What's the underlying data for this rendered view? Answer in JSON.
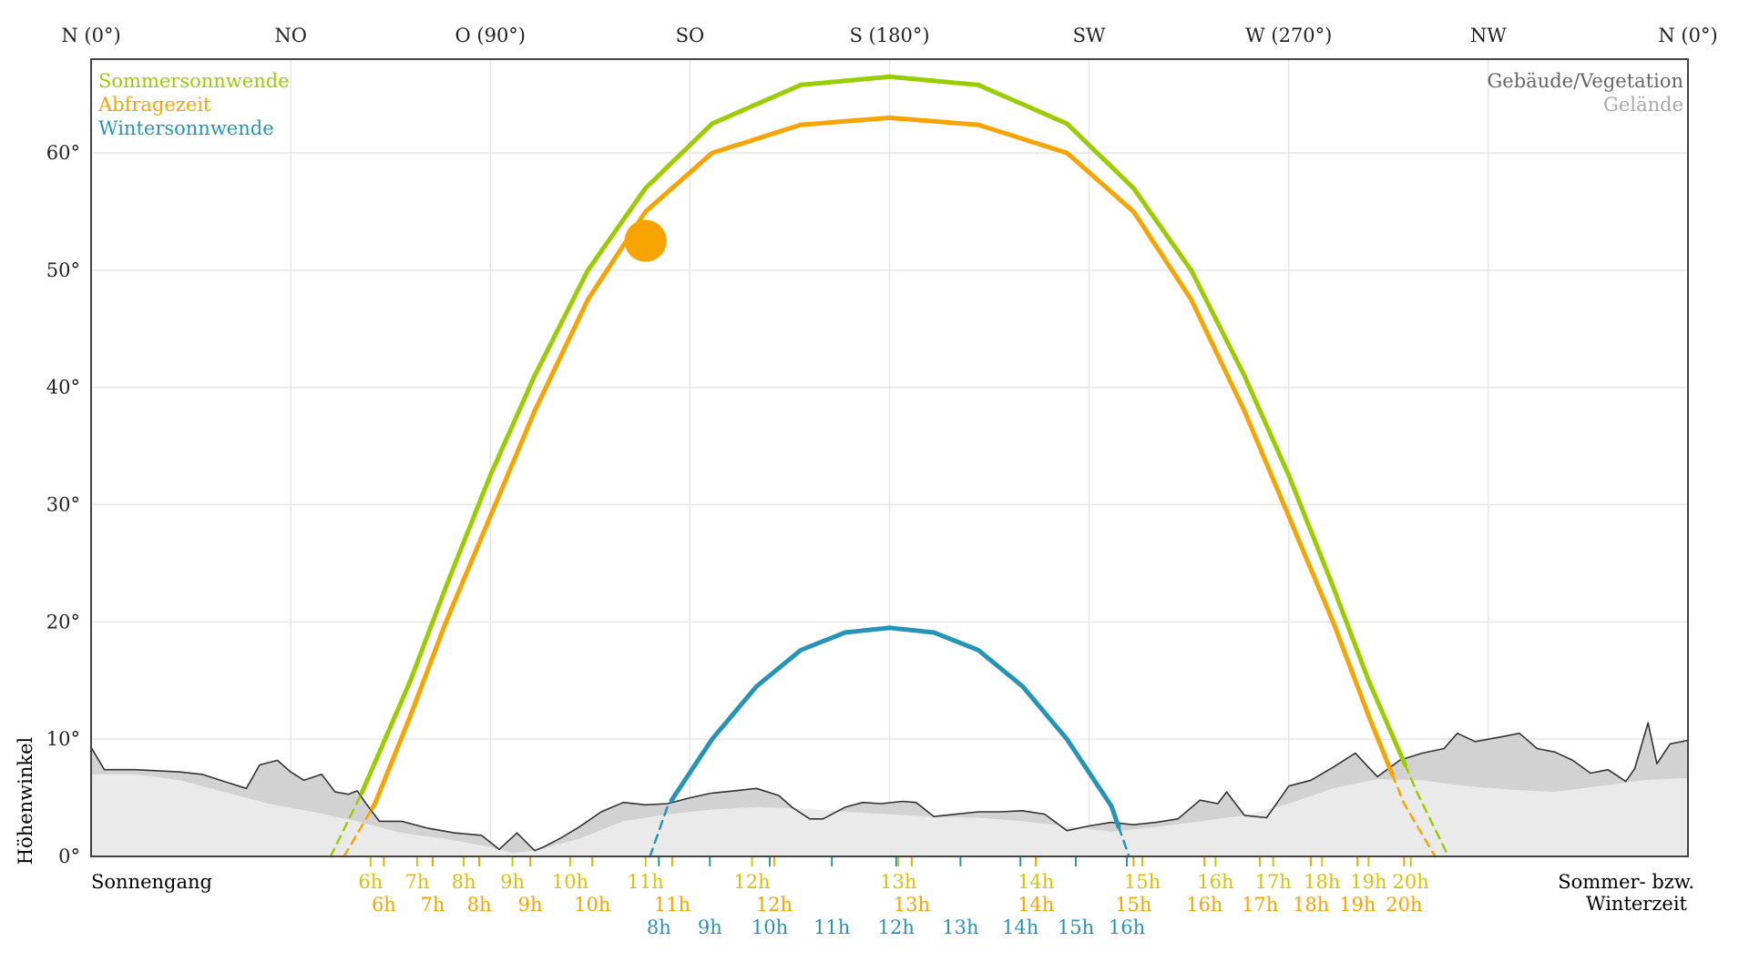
{
  "chart_data": {
    "type": "line",
    "x_axis": {
      "range": [
        0,
        360
      ],
      "direction_labels": [
        {
          "deg": 0,
          "label": "N (0°)"
        },
        {
          "deg": 45,
          "label": "NO"
        },
        {
          "deg": 90,
          "label": "O (90°)"
        },
        {
          "deg": 135,
          "label": "SO"
        },
        {
          "deg": 180,
          "label": "S (180°)"
        },
        {
          "deg": 225,
          "label": "SW"
        },
        {
          "deg": 270,
          "label": "W (270°)"
        },
        {
          "deg": 315,
          "label": "NW"
        },
        {
          "deg": 360,
          "label": "N (0°)"
        }
      ],
      "left_caption": "Sonnengang",
      "right_caption_1": "Sommer- bzw.",
      "right_caption_2": "Winterzeit"
    },
    "y_axis": {
      "label": "Höhenwinkel",
      "range": [
        0,
        68
      ],
      "ticks": [
        {
          "value": 0,
          "label": "0°"
        },
        {
          "value": 10,
          "label": "10°"
        },
        {
          "value": 20,
          "label": "20°"
        },
        {
          "value": 30,
          "label": "30°"
        },
        {
          "value": 40,
          "label": "40°"
        },
        {
          "value": 50,
          "label": "50°"
        },
        {
          "value": 60,
          "label": "60°"
        }
      ]
    },
    "grid": true,
    "legend_left": {
      "placement": "top-left",
      "entries": [
        {
          "name": "Sommersonnwende",
          "color": "#9acd00"
        },
        {
          "name": "Abfragezeit",
          "color": "#f7a400"
        },
        {
          "name": "Wintersonnwende",
          "color": "#2694b6"
        }
      ]
    },
    "legend_right": {
      "placement": "top-right",
      "entries": [
        {
          "name": "Gebäude/Vegetation",
          "color": "#666666"
        },
        {
          "name": "Gelände",
          "color": "#aaaaaa"
        }
      ]
    },
    "series": [
      {
        "name": "Sommersonnwende",
        "color": "#9acd00",
        "max_alt": 66.5,
        "points": [
          [
            54,
            0
          ],
          [
            61,
            5.4
          ],
          [
            72,
            15
          ],
          [
            80,
            23
          ],
          [
            90,
            32.5
          ],
          [
            100,
            41
          ],
          [
            112,
            50
          ],
          [
            125,
            57
          ],
          [
            140,
            62.5
          ],
          [
            160,
            65.8
          ],
          [
            180,
            66.5
          ],
          [
            200,
            65.8
          ],
          [
            220,
            62.5
          ],
          [
            235,
            57
          ],
          [
            248,
            50
          ],
          [
            260,
            41
          ],
          [
            270,
            32.5
          ],
          [
            280,
            23
          ],
          [
            288,
            15
          ],
          [
            299,
            5.4
          ],
          [
            306,
            0
          ]
        ]
      },
      {
        "name": "Abfragezeit",
        "color": "#f7a400",
        "max_alt": 63,
        "points": [
          [
            57,
            0
          ],
          [
            64,
            4.5
          ],
          [
            72,
            12
          ],
          [
            80,
            20
          ],
          [
            90,
            29
          ],
          [
            100,
            38
          ],
          [
            112,
            47.5
          ],
          [
            125,
            55
          ],
          [
            140,
            60
          ],
          [
            160,
            62.4
          ],
          [
            180,
            63
          ],
          [
            200,
            62.4
          ],
          [
            220,
            60
          ],
          [
            235,
            55
          ],
          [
            248,
            47.5
          ],
          [
            260,
            38
          ],
          [
            270,
            29
          ],
          [
            280,
            20
          ],
          [
            288,
            12
          ],
          [
            296,
            4.5
          ],
          [
            303,
            0
          ]
        ]
      },
      {
        "name": "Wintersonnwende",
        "color": "#2694b6",
        "max_alt": 19.5,
        "points": [
          [
            126,
            0
          ],
          [
            130,
            4.3
          ],
          [
            140,
            10
          ],
          [
            150,
            14.5
          ],
          [
            160,
            17.6
          ],
          [
            170,
            19.1
          ],
          [
            180,
            19.5
          ],
          [
            190,
            19.1
          ],
          [
            200,
            17.6
          ],
          [
            210,
            14.5
          ],
          [
            220,
            10
          ],
          [
            230,
            4.3
          ],
          [
            234,
            0
          ]
        ]
      }
    ],
    "sun_position": {
      "azimuth": 125,
      "altitude": 52.5,
      "color": "#f7a400"
    },
    "terrain": {
      "name": "Gelände",
      "color": "#eaeaea",
      "points": [
        [
          0,
          7
        ],
        [
          10,
          7
        ],
        [
          20,
          6.5
        ],
        [
          30,
          5.5
        ],
        [
          40,
          4.5
        ],
        [
          50,
          3.8
        ],
        [
          60,
          3
        ],
        [
          70,
          2
        ],
        [
          80,
          1.5
        ],
        [
          90,
          0.8
        ],
        [
          95,
          0.3
        ],
        [
          100,
          0.5
        ],
        [
          110,
          1.5
        ],
        [
          120,
          3
        ],
        [
          130,
          3.6
        ],
        [
          140,
          4
        ],
        [
          150,
          4.2
        ],
        [
          160,
          4.1
        ],
        [
          170,
          3.8
        ],
        [
          180,
          3.6
        ],
        [
          190,
          3.4
        ],
        [
          200,
          3.3
        ],
        [
          210,
          3
        ],
        [
          220,
          2.6
        ],
        [
          230,
          2.1
        ],
        [
          240,
          2.5
        ],
        [
          250,
          3
        ],
        [
          260,
          3.5
        ],
        [
          270,
          4.5
        ],
        [
          280,
          5.8
        ],
        [
          290,
          6.6
        ],
        [
          300,
          6.5
        ],
        [
          310,
          6
        ],
        [
          320,
          5.7
        ],
        [
          330,
          5.5
        ],
        [
          340,
          6
        ],
        [
          350,
          6.5
        ],
        [
          360,
          6.7
        ]
      ]
    },
    "obstacles": {
      "name": "Gebäude/Vegetation",
      "color": "#d2d2d2",
      "points": [
        [
          0,
          9.3
        ],
        [
          3,
          7.4
        ],
        [
          10,
          7.4
        ],
        [
          20,
          7.2
        ],
        [
          25,
          7
        ],
        [
          30,
          6.4
        ],
        [
          35,
          5.8
        ],
        [
          38,
          7.8
        ],
        [
          42,
          8.2
        ],
        [
          45,
          7.2
        ],
        [
          48,
          6.5
        ],
        [
          52,
          7
        ],
        [
          55,
          5.5
        ],
        [
          58,
          5.3
        ],
        [
          60,
          5.6
        ],
        [
          62,
          4.5
        ],
        [
          65,
          3
        ],
        [
          70,
          3
        ],
        [
          76,
          2.4
        ],
        [
          82,
          2
        ],
        [
          88,
          1.8
        ],
        [
          92,
          0.6
        ],
        [
          96,
          2
        ],
        [
          100,
          0.5
        ],
        [
          102,
          0.8
        ],
        [
          106,
          1.6
        ],
        [
          110,
          2.5
        ],
        [
          115,
          3.8
        ],
        [
          120,
          4.6
        ],
        [
          125,
          4.4
        ],
        [
          130,
          4.5
        ],
        [
          135,
          5
        ],
        [
          140,
          5.4
        ],
        [
          145,
          5.6
        ],
        [
          150,
          5.8
        ],
        [
          155,
          5.2
        ],
        [
          158,
          4.2
        ],
        [
          162,
          3.2
        ],
        [
          165,
          3.2
        ],
        [
          170,
          4.2
        ],
        [
          174,
          4.6
        ],
        [
          178,
          4.5
        ],
        [
          183,
          4.7
        ],
        [
          186,
          4.6
        ],
        [
          190,
          3.4
        ],
        [
          195,
          3.6
        ],
        [
          200,
          3.8
        ],
        [
          205,
          3.8
        ],
        [
          210,
          3.9
        ],
        [
          215,
          3.6
        ],
        [
          220,
          2.2
        ],
        [
          225,
          2.6
        ],
        [
          230,
          2.9
        ],
        [
          235,
          2.7
        ],
        [
          240,
          2.9
        ],
        [
          245,
          3.2
        ],
        [
          250,
          4.8
        ],
        [
          254,
          4.5
        ],
        [
          256,
          5.5
        ],
        [
          260,
          3.5
        ],
        [
          265,
          3.3
        ],
        [
          270,
          6
        ],
        [
          275,
          6.5
        ],
        [
          280,
          7.6
        ],
        [
          285,
          8.8
        ],
        [
          290,
          6.8
        ],
        [
          295,
          8.2
        ],
        [
          300,
          8.8
        ],
        [
          305,
          9.2
        ],
        [
          308,
          10.5
        ],
        [
          312,
          9.8
        ],
        [
          318,
          10.2
        ],
        [
          322,
          10.5
        ],
        [
          326,
          9.2
        ],
        [
          330,
          8.9
        ],
        [
          334,
          8.2
        ],
        [
          338,
          7.1
        ],
        [
          342,
          7.4
        ],
        [
          346,
          6.4
        ],
        [
          348,
          7.5
        ],
        [
          351,
          11.4
        ],
        [
          353,
          7.9
        ],
        [
          356,
          9.6
        ],
        [
          360,
          9.9
        ]
      ]
    },
    "hour_rows": {
      "sommer": {
        "color": "#d9c200",
        "labels": [
          {
            "az": 63,
            "label": "6h"
          },
          {
            "az": 73.5,
            "label": "7h"
          },
          {
            "az": 84,
            "label": "8h"
          },
          {
            "az": 95,
            "label": "9h"
          },
          {
            "az": 108,
            "label": "10h"
          },
          {
            "az": 125,
            "label": "11h"
          },
          {
            "az": 149,
            "label": "12h"
          },
          {
            "az": 182,
            "label": "13h"
          },
          {
            "az": 213,
            "label": "14h"
          },
          {
            "az": 237,
            "label": "15h"
          },
          {
            "az": 253.5,
            "label": "16h"
          },
          {
            "az": 266.5,
            "label": "17h"
          },
          {
            "az": 277.5,
            "label": "18h"
          },
          {
            "az": 288,
            "label": "19h"
          },
          {
            "az": 297.5,
            "label": "20h"
          }
        ]
      },
      "abfrage": {
        "color": "#f7a400",
        "labels": [
          {
            "az": 66,
            "label": "6h"
          },
          {
            "az": 77,
            "label": "7h"
          },
          {
            "az": 87.5,
            "label": "8h"
          },
          {
            "az": 99,
            "label": "9h"
          },
          {
            "az": 113,
            "label": "10h"
          },
          {
            "az": 131,
            "label": "11h"
          },
          {
            "az": 154,
            "label": "12h"
          },
          {
            "az": 185,
            "label": "13h"
          },
          {
            "az": 213,
            "label": "14h"
          },
          {
            "az": 235,
            "label": "15h"
          },
          {
            "az": 251,
            "label": "16h"
          },
          {
            "az": 263.5,
            "label": "17h"
          },
          {
            "az": 275,
            "label": "18h"
          },
          {
            "az": 285.5,
            "label": "19h"
          },
          {
            "az": 296,
            "label": "20h"
          }
        ]
      },
      "winter": {
        "color": "#2694b6",
        "labels": [
          {
            "az": 128,
            "label": "8h"
          },
          {
            "az": 139.5,
            "label": "9h"
          },
          {
            "az": 153,
            "label": "10h"
          },
          {
            "az": 167,
            "label": "11h"
          },
          {
            "az": 181.5,
            "label": "12h"
          },
          {
            "az": 196,
            "label": "13h"
          },
          {
            "az": 209.5,
            "label": "14h"
          },
          {
            "az": 222,
            "label": "15h"
          },
          {
            "az": 233.5,
            "label": "16h"
          }
        ]
      }
    }
  }
}
